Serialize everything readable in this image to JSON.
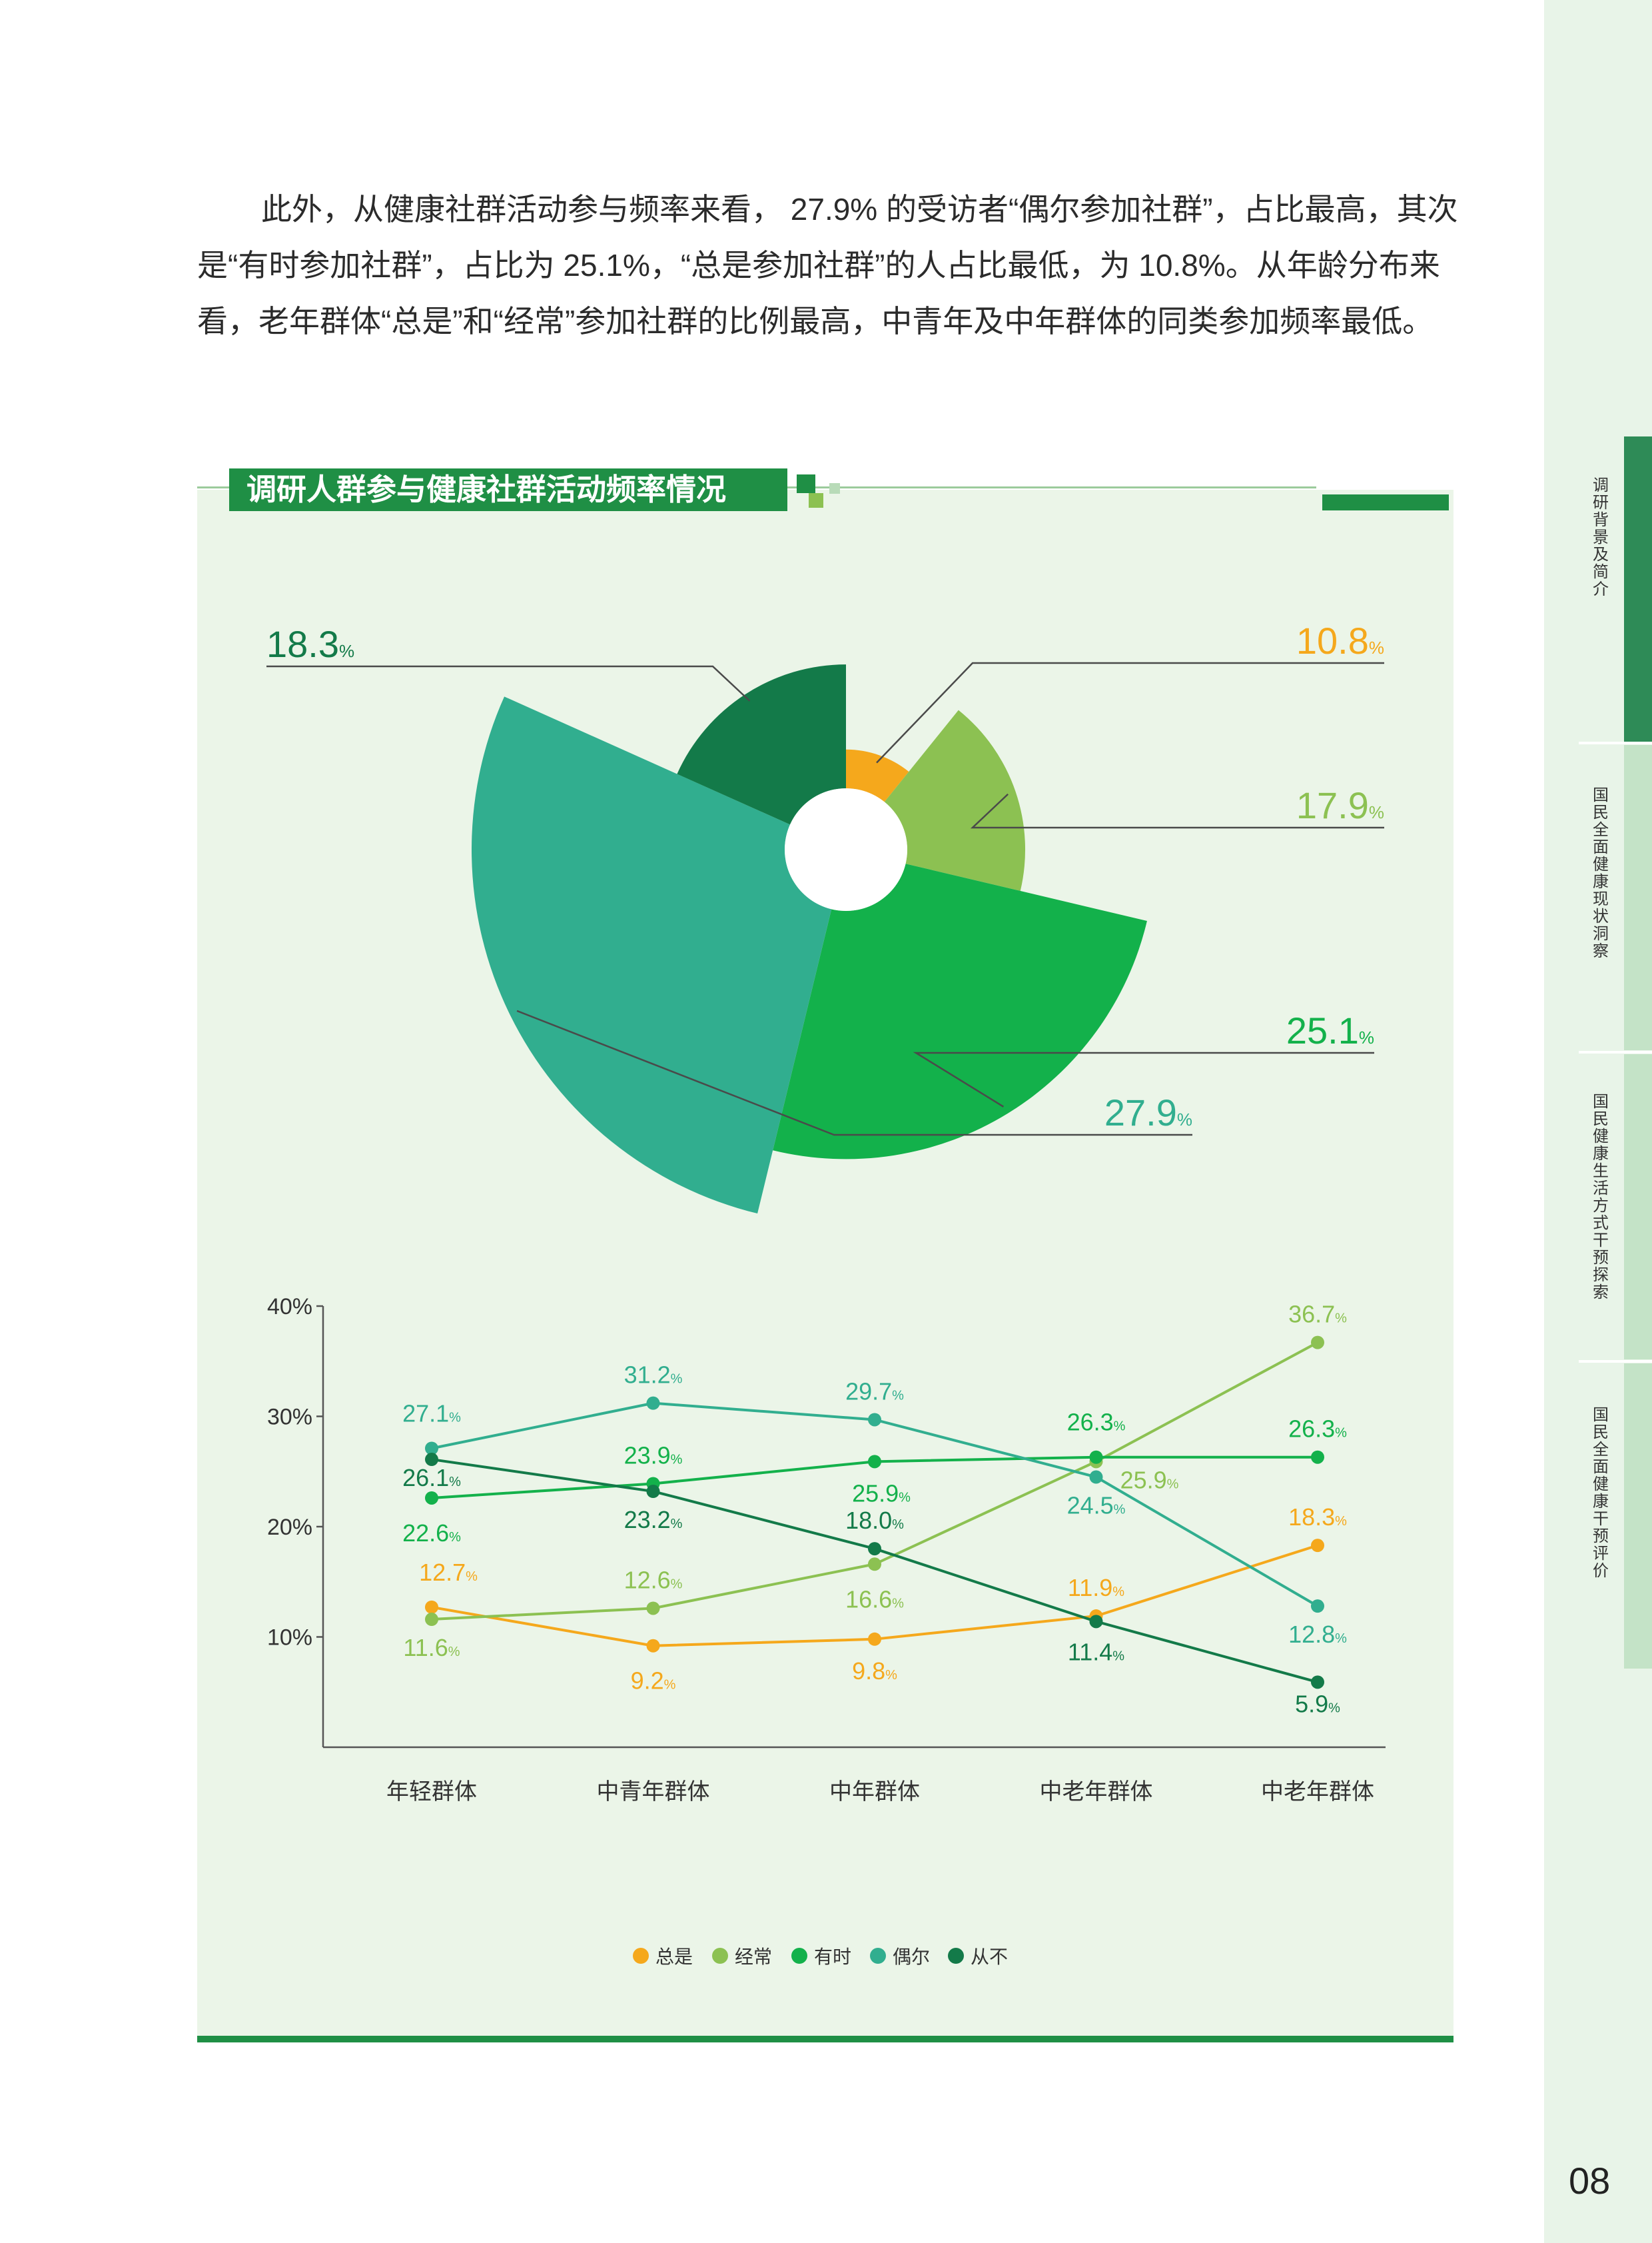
{
  "paragraph": "此外，从健康社群活动参与频率来看， 27.9% 的受访者“偶尔参加社群”，占比最高，其次是“有时参加社群”，占比为 25.1%，“总是参加社群”的人占比最低，为 10.8%。从年龄分布来看，老年群体“总是”和“经常”参加社群的比例最高，中青年及中年群体的同类参加频率最低。",
  "chart_title": "调研人群参与健康社群活动频率情况",
  "sidebar": {
    "items": [
      {
        "label": "调研背景及简介"
      },
      {
        "label": "国民全面健康现状洞察"
      },
      {
        "label": "国民健康生活方式干预探索"
      },
      {
        "label": "国民全面健康干预评价"
      }
    ]
  },
  "page_number": "08",
  "colors": {
    "总是": "#f5a81c",
    "经常": "#8cc152",
    "有时": "#13b14b",
    "偶尔": "#31ae8f",
    "从不": "#137a49",
    "brand": "#1f8f45"
  },
  "chart_data": [
    {
      "type": "pie",
      "subtype": "rose",
      "categories": [
        "总是",
        "经常",
        "有时",
        "偶尔",
        "从不"
      ],
      "values": [
        10.8,
        17.9,
        25.1,
        27.9,
        18.3
      ],
      "labels": [
        "10.8",
        "17.9",
        "25.1",
        "27.9",
        "18.3"
      ],
      "unit": "%"
    },
    {
      "type": "line",
      "categories": [
        "年轻群体",
        "中青年群体",
        "中年群体",
        "中老年群体",
        "中老年群体"
      ],
      "ylim": [
        0,
        40
      ],
      "yticks": [
        "10%",
        "20%",
        "30%",
        "40%"
      ],
      "unit": "%",
      "series": [
        {
          "name": "总是",
          "values": [
            12.7,
            9.2,
            9.8,
            11.9,
            18.3
          ],
          "labels": [
            "12.7",
            "9.2",
            "9.8",
            "11.9",
            "18.3"
          ]
        },
        {
          "name": "经常",
          "values": [
            11.6,
            12.6,
            16.6,
            25.9,
            36.7
          ],
          "labels": [
            "11.6",
            "12.6",
            "16.6",
            "25.9",
            "36.7"
          ]
        },
        {
          "name": "有时",
          "values": [
            22.6,
            23.9,
            25.9,
            26.3,
            26.3
          ],
          "labels": [
            "22.6",
            "23.9",
            "25.9",
            "26.3",
            "26.3"
          ]
        },
        {
          "name": "偶尔",
          "values": [
            27.1,
            31.2,
            29.7,
            24.5,
            12.8
          ],
          "labels": [
            "27.1",
            "31.2",
            "29.7",
            "24.5",
            "12.8"
          ]
        },
        {
          "name": "从不",
          "values": [
            26.1,
            23.2,
            18.0,
            11.4,
            5.9
          ],
          "labels": [
            "26.1",
            "23.2",
            "18.0",
            "11.4",
            "5.9"
          ]
        }
      ],
      "legend": "bottom"
    }
  ]
}
